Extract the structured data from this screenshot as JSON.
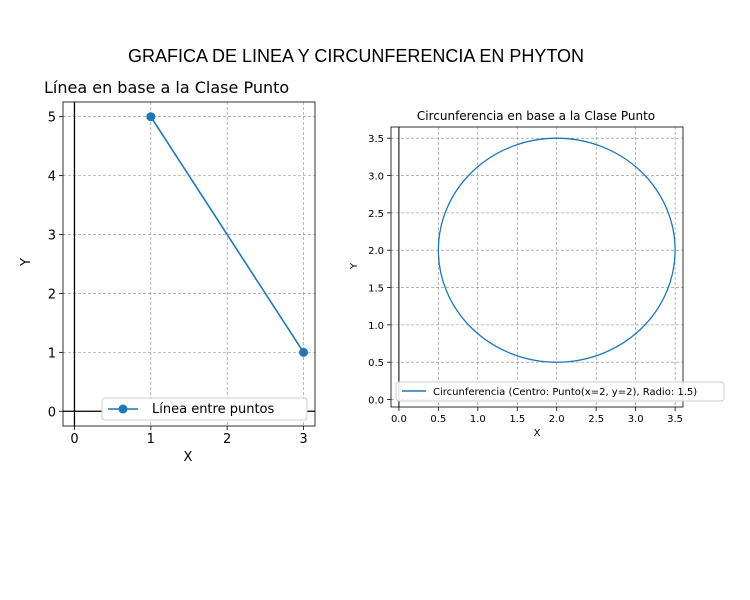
{
  "figure": {
    "title": "GRAFICA DE LINEA Y CIRCUNFERENCIA EN PHYTON"
  },
  "chart_data": [
    {
      "type": "line",
      "title": "Línea en base a la Clase Punto",
      "xlabel": "X",
      "ylabel": "Y",
      "xlim": [
        -0.15,
        3.15
      ],
      "ylim": [
        -0.25,
        5.25
      ],
      "xticks": [
        "0",
        "1",
        "2",
        "3"
      ],
      "yticks": [
        "0",
        "1",
        "2",
        "3",
        "4",
        "5"
      ],
      "grid": true,
      "legend_position": "lower-right",
      "series": [
        {
          "name": "Línea entre puntos",
          "color": "#1f77b4",
          "marker": "circle",
          "x": [
            1,
            3
          ],
          "y": [
            5,
            1
          ]
        }
      ]
    },
    {
      "type": "line",
      "title": "Circunferencia en base a la Clase Punto",
      "xlabel": "X",
      "ylabel": "Y",
      "xlim": [
        -0.1,
        3.6
      ],
      "ylim": [
        -0.1,
        3.65
      ],
      "xticks": [
        "0.0",
        "0.5",
        "1.0",
        "1.5",
        "2.0",
        "2.5",
        "3.0",
        "3.5"
      ],
      "yticks": [
        "0.0",
        "0.5",
        "1.0",
        "1.5",
        "2.0",
        "2.5",
        "3.0",
        "3.5"
      ],
      "grid": true,
      "legend_position": "lower-center",
      "series": [
        {
          "name": "Circunferencia (Centro: Punto(x=2, y=2), Radio: 1.5)",
          "color": "#1f77b4",
          "shape": "circle",
          "center": [
            2,
            2
          ],
          "radius": 1.5
        }
      ]
    }
  ]
}
